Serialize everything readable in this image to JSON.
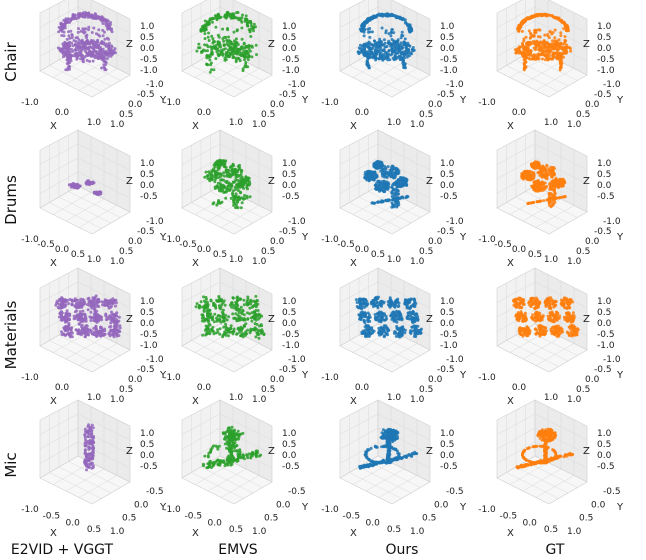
{
  "chart_data": {
    "type": "scatter",
    "subtype": "3d-point-cloud-grid",
    "rows": [
      "Chair",
      "Drums",
      "Materials",
      "Mic"
    ],
    "columns": [
      "E2VID + VGGT",
      "EMVS",
      "Ours",
      "GT"
    ],
    "colors": {
      "E2VID + VGGT": "#9467bd",
      "EMVS": "#2ca02c",
      "Ours": "#1f77b4",
      "GT": "#ff7f0e"
    },
    "axes": {
      "xlabel": "X",
      "ylabel": "Y",
      "zlabel": "Z",
      "grid": true
    },
    "panels": [
      {
        "row": "Chair",
        "x_ticks": [
          "-1.0",
          "0.0",
          "1.0"
        ],
        "y_ticks": [
          "-1.0",
          "-0.5",
          "0.0",
          "0.5",
          "1.0"
        ],
        "z_ticks": [
          "-1.0",
          "-0.5",
          "0.0",
          "0.5",
          "1.0"
        ]
      },
      {
        "row": "Drums",
        "x_ticks": [
          "-1.0",
          "-0.5",
          "0.0",
          "0.5",
          "1.0"
        ],
        "y_ticks": [
          "-1.0",
          "-0.5",
          "0.0",
          "0.5",
          "1.0"
        ],
        "z_ticks": [
          "-0.5",
          "0.0",
          "0.5",
          "1.0"
        ]
      },
      {
        "row": "Materials",
        "x_ticks": [
          "-1.0",
          "0.0",
          "1.0"
        ],
        "y_ticks": [
          "-1.0",
          "-0.5",
          "0.0",
          "0.5",
          "1.0"
        ],
        "z_ticks": [
          "-1.0",
          "-0.5",
          "0.0",
          "0.5",
          "1.0"
        ]
      },
      {
        "row": "Mic",
        "x_ticks": [
          "-1.0",
          "-0.5",
          "0.0",
          "0.5"
        ],
        "y_ticks": [
          "-0.5",
          "0.0",
          "0.5",
          "1.0"
        ],
        "z_ticks": [
          "-0.5",
          "0.0",
          "0.5",
          "1.0"
        ]
      }
    ]
  }
}
